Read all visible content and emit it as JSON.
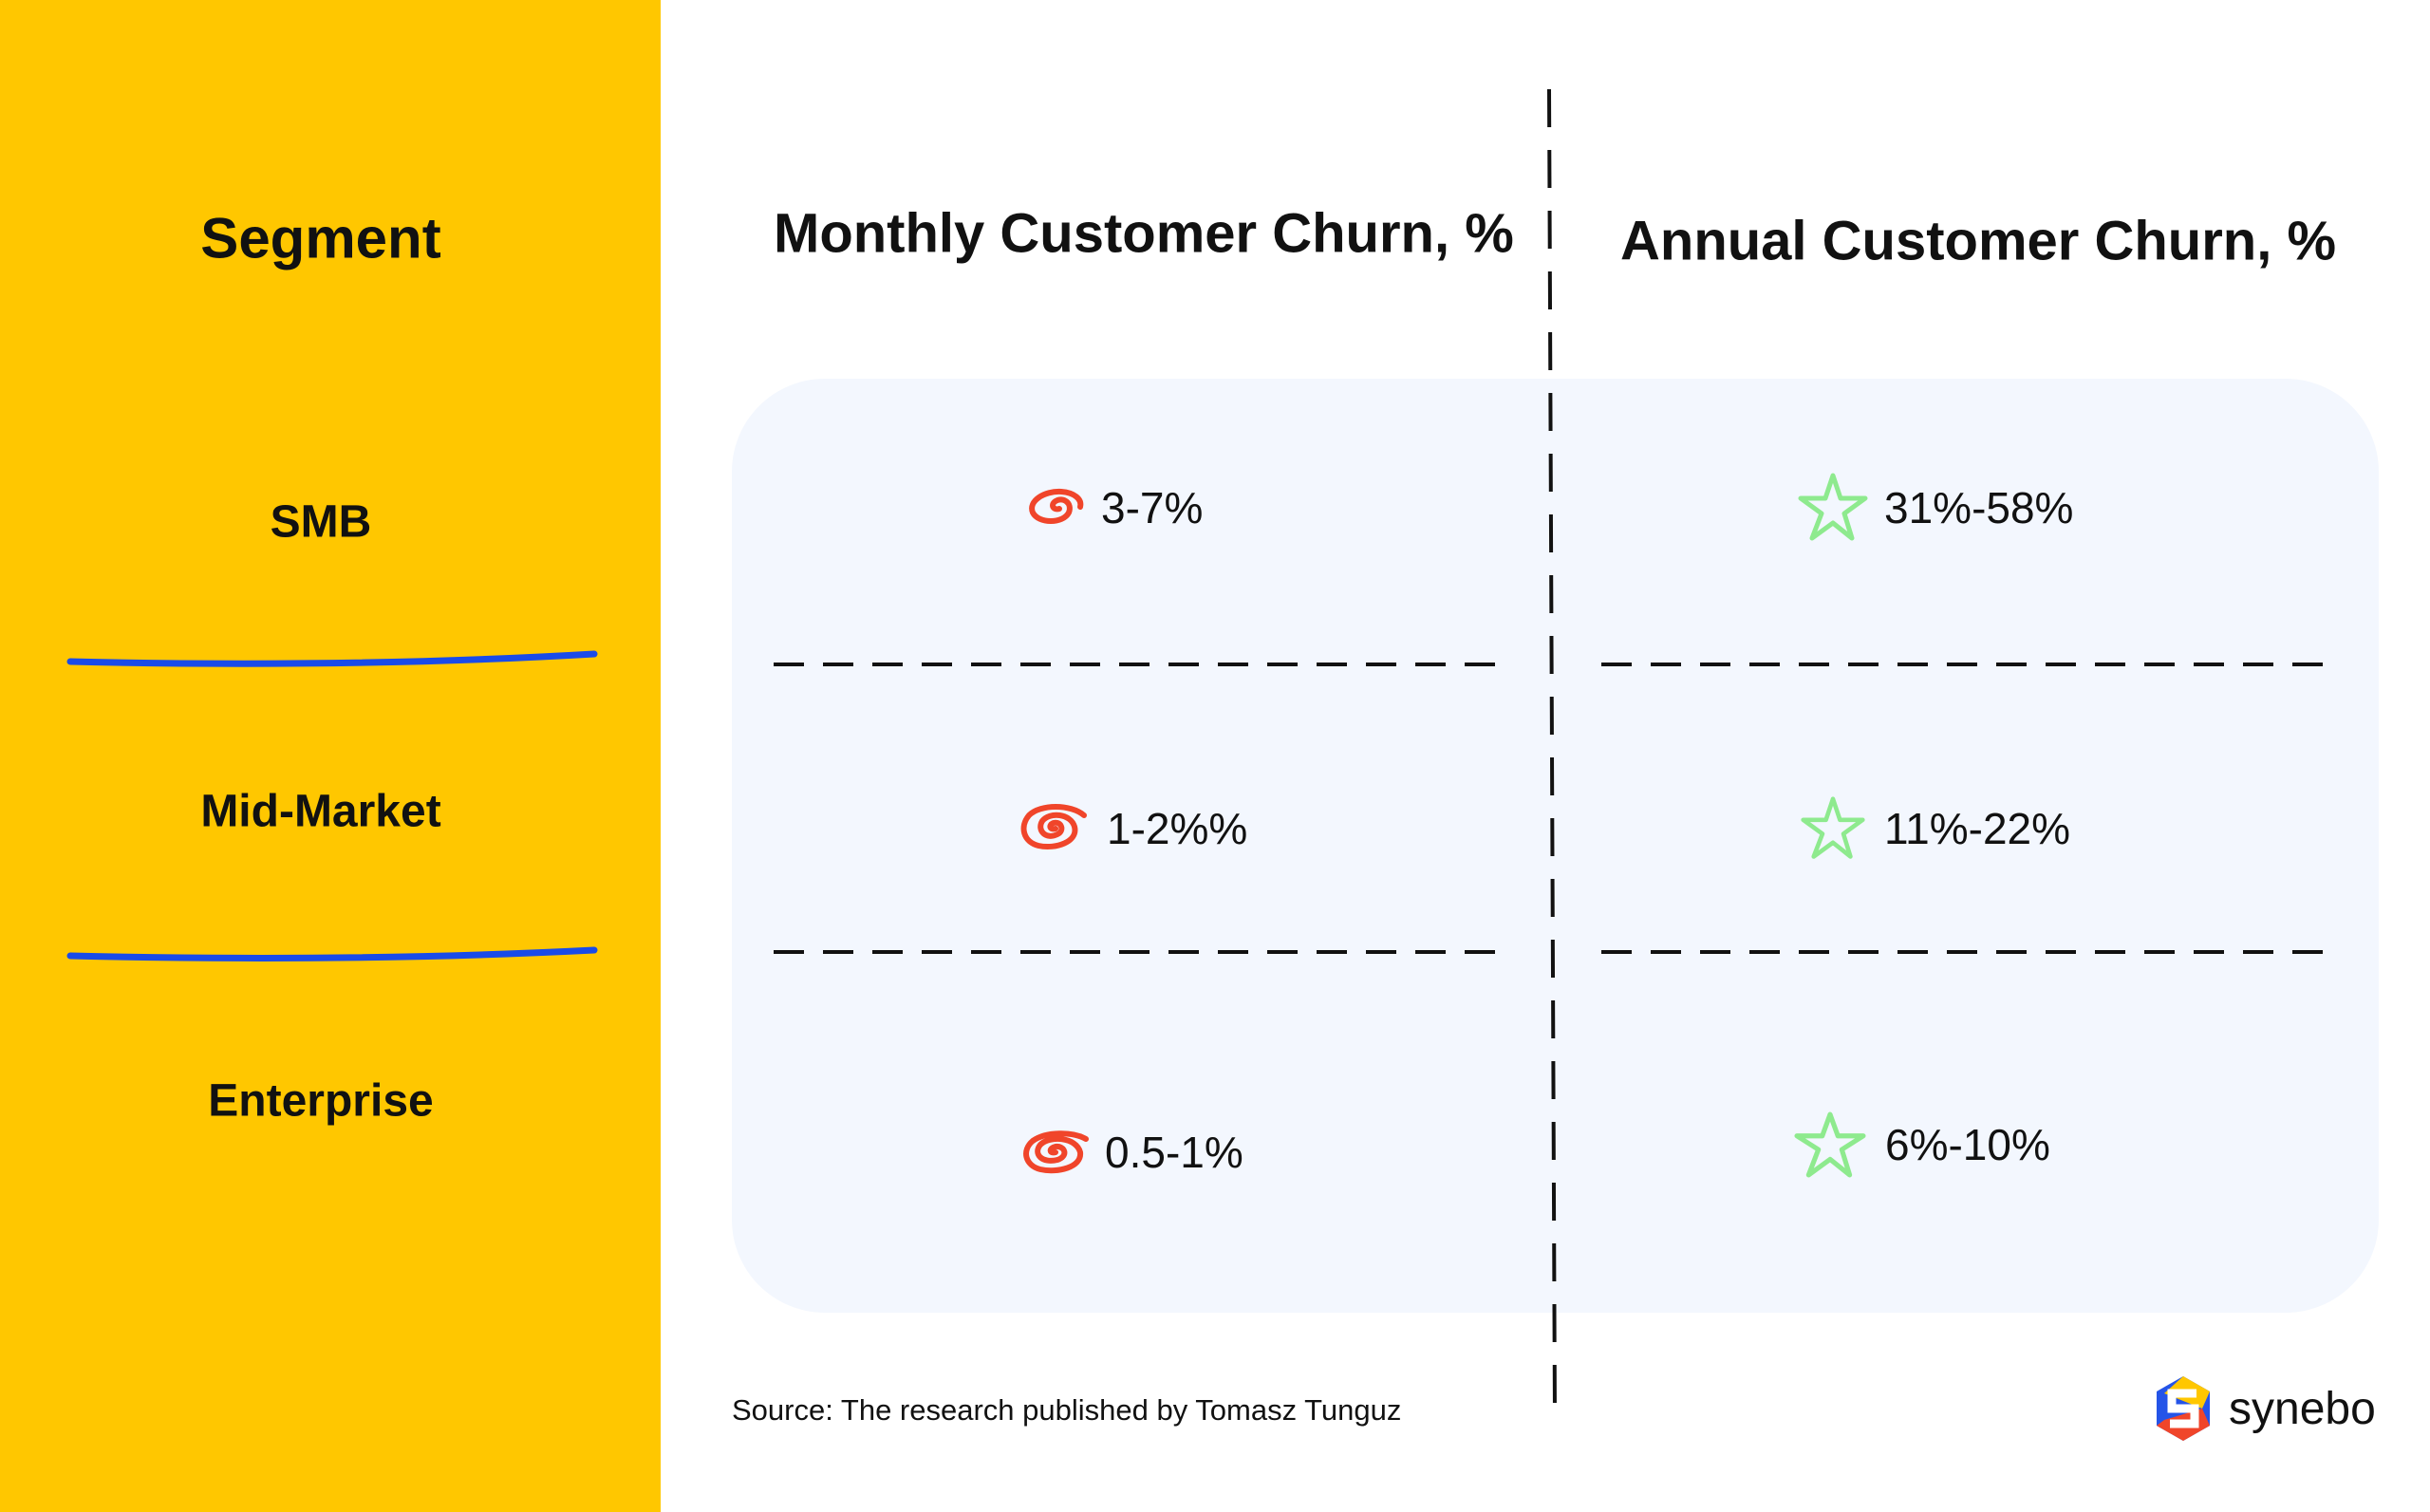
{
  "segment_header": "Segment",
  "column_headers": {
    "monthly": "Monthly Customer Churn, %",
    "annual": "Annual Customer Churn, %"
  },
  "rows": [
    {
      "segment": "SMB",
      "monthly": "3-7%",
      "annual": "31%-58%"
    },
    {
      "segment": "Mid-Market",
      "monthly": "1-2%%",
      "annual": "11%-22%"
    },
    {
      "segment": "Enterprise",
      "monthly": "0.5-1%",
      "annual": "6%-10%"
    }
  ],
  "icons": {
    "monthly": "spiral-icon",
    "annual": "star-icon"
  },
  "source": "Source: The research published by Tomasz Tunguz",
  "brand": "synebo",
  "colors": {
    "sidebar": "#FFC700",
    "divider": "#1A4BE8",
    "spiral": "#F0452A",
    "star": "#8EEA8E",
    "panel": "#F3F7FE"
  }
}
